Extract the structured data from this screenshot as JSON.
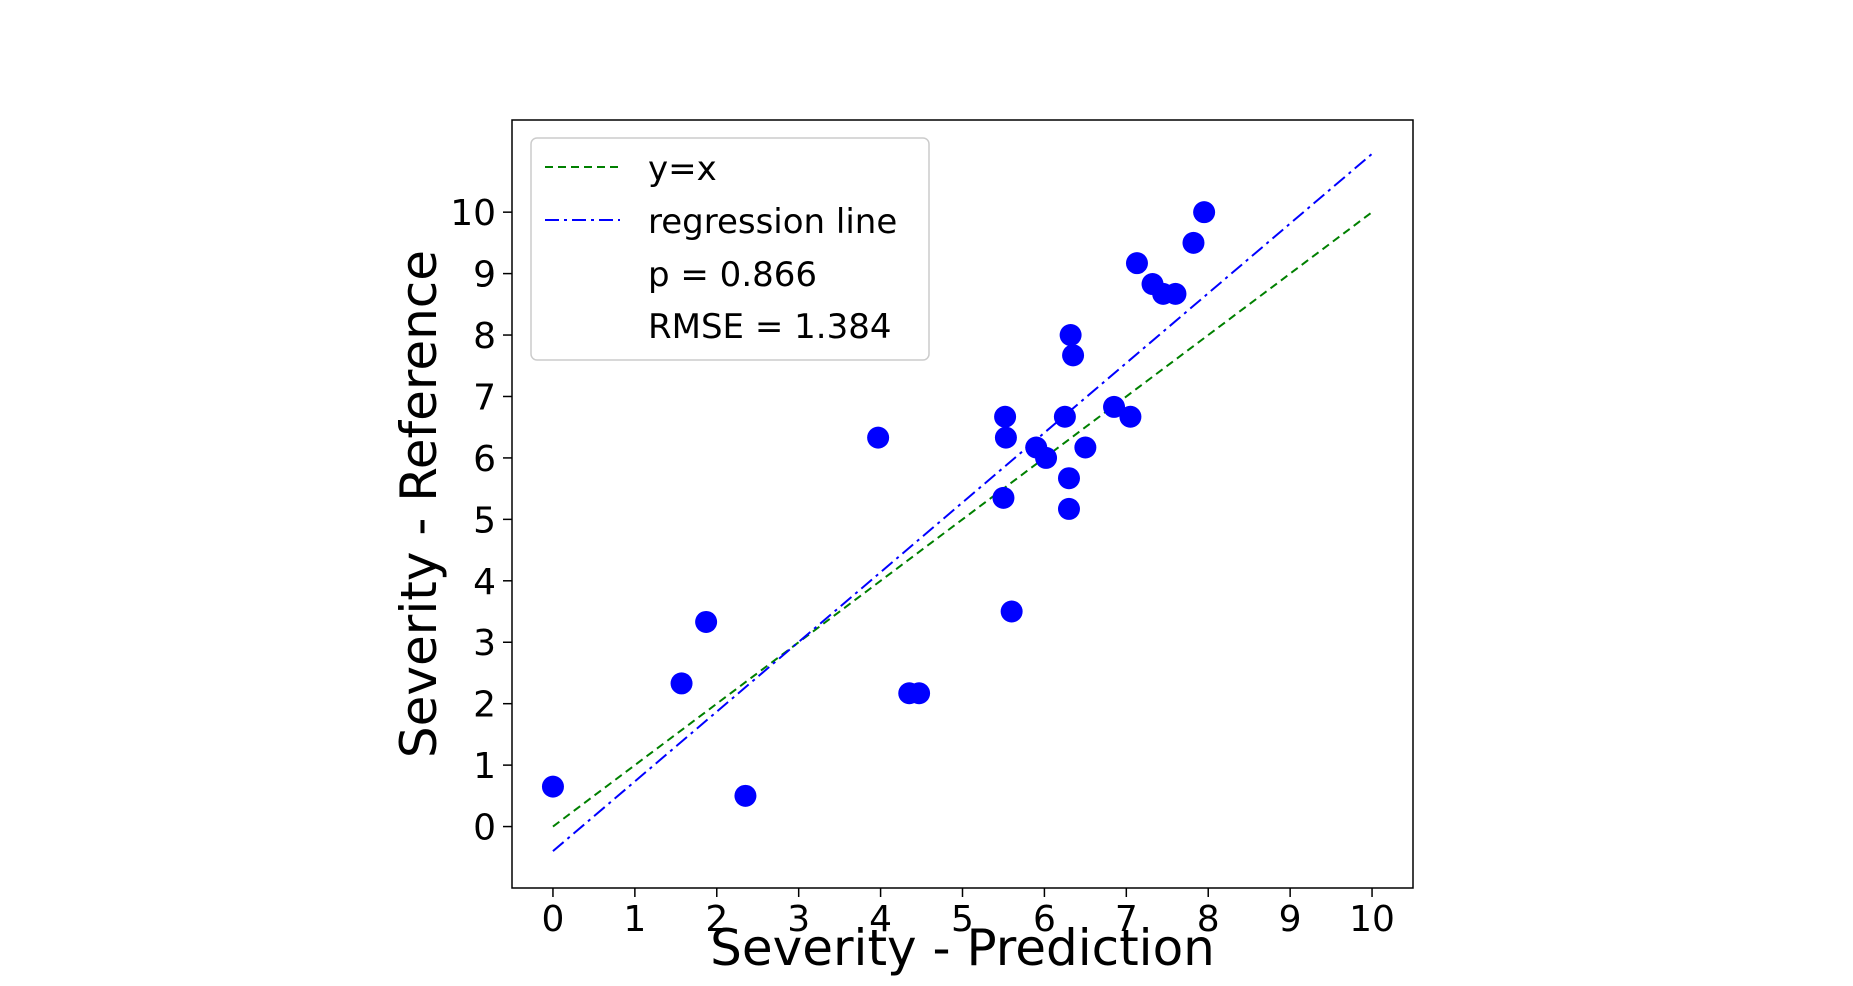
{
  "chart_data": {
    "type": "scatter",
    "title": "",
    "xlabel": "Severity - Prediction",
    "ylabel": "Severity - Reference",
    "xlim": [
      -0.5,
      10.5
    ],
    "ylim": [
      -1.0,
      11.5
    ],
    "xticks": [
      "0",
      "1",
      "2",
      "3",
      "4",
      "5",
      "6",
      "7",
      "8",
      "9",
      "10"
    ],
    "yticks": [
      "0",
      "1",
      "2",
      "3",
      "4",
      "5",
      "6",
      "7",
      "8",
      "9",
      "10"
    ],
    "grid": false,
    "legend_position": "top-left",
    "colors": {
      "points": "#0000ff",
      "identity_line": "#008000",
      "regression_line": "#0000ff"
    },
    "lines": [
      {
        "name": "y=x",
        "style": "dashed",
        "x": [
          0,
          10
        ],
        "y": [
          0,
          10
        ]
      },
      {
        "name": "regression line",
        "style": "dashdot",
        "x": [
          0,
          10
        ],
        "y": [
          -0.4,
          10.95
        ]
      }
    ],
    "stats": [
      "p = 0.866",
      "RMSE = 1.384"
    ],
    "points": [
      {
        "x": 0.0,
        "y": 0.65
      },
      {
        "x": 1.57,
        "y": 2.33
      },
      {
        "x": 1.87,
        "y": 3.33
      },
      {
        "x": 2.35,
        "y": 0.5
      },
      {
        "x": 3.97,
        "y": 6.33
      },
      {
        "x": 4.35,
        "y": 2.17
      },
      {
        "x": 4.47,
        "y": 2.17
      },
      {
        "x": 5.5,
        "y": 5.35
      },
      {
        "x": 5.52,
        "y": 6.67
      },
      {
        "x": 5.53,
        "y": 6.33
      },
      {
        "x": 5.6,
        "y": 3.5
      },
      {
        "x": 5.9,
        "y": 6.17
      },
      {
        "x": 6.02,
        "y": 6.0
      },
      {
        "x": 6.25,
        "y": 6.67
      },
      {
        "x": 6.3,
        "y": 5.67
      },
      {
        "x": 6.3,
        "y": 5.17
      },
      {
        "x": 6.32,
        "y": 8.0
      },
      {
        "x": 6.35,
        "y": 7.67
      },
      {
        "x": 6.5,
        "y": 6.17
      },
      {
        "x": 6.85,
        "y": 6.83
      },
      {
        "x": 7.05,
        "y": 6.67
      },
      {
        "x": 7.13,
        "y": 9.17
      },
      {
        "x": 7.32,
        "y": 8.83
      },
      {
        "x": 7.45,
        "y": 8.67
      },
      {
        "x": 7.6,
        "y": 8.67
      },
      {
        "x": 7.82,
        "y": 9.5
      },
      {
        "x": 7.95,
        "y": 10.0
      }
    ]
  }
}
